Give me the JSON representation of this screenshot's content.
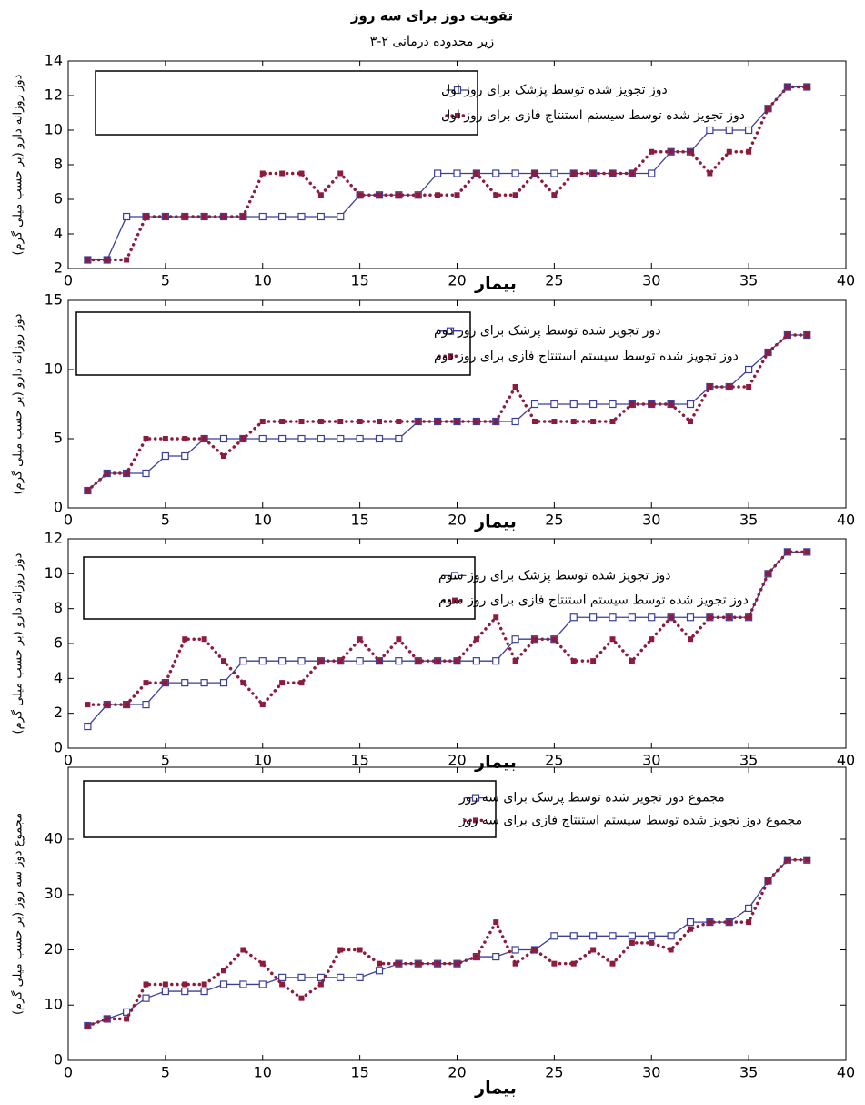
{
  "chart_data": [
    {
      "type": "line",
      "title": "تقویت دوز برای سه روز",
      "subtitle": "زیر محدوده درمانی ۲-۳",
      "x_label": "بیمار",
      "y_label": "دوز روزانه دارو (بر حسب میلی گرم)",
      "legend": "upper left",
      "xlim": [
        0,
        40
      ],
      "xticks": [
        0,
        5,
        10,
        15,
        20,
        25,
        30,
        35,
        40
      ],
      "ylim": [
        2,
        14
      ],
      "yticks": [
        2,
        4,
        6,
        8,
        10,
        12,
        14
      ],
      "x": [
        1,
        2,
        3,
        4,
        5,
        6,
        7,
        8,
        9,
        10,
        11,
        12,
        13,
        14,
        15,
        16,
        17,
        18,
        19,
        20,
        21,
        22,
        23,
        24,
        25,
        26,
        27,
        28,
        29,
        30,
        31,
        32,
        33,
        34,
        35,
        36,
        37,
        38
      ],
      "series": [
        {
          "name": "دوز تجویز شده توسط پزشک  برای روز اول",
          "color": "#3a3f9e",
          "style": "solid",
          "values": [
            2.5,
            2.5,
            5,
            5,
            5,
            5,
            5,
            5,
            5,
            5,
            5,
            5,
            5,
            5,
            6.25,
            6.25,
            6.25,
            6.25,
            7.5,
            7.5,
            7.5,
            7.5,
            7.5,
            7.5,
            7.5,
            7.5,
            7.5,
            7.5,
            7.5,
            7.5,
            8.75,
            8.75,
            10,
            10,
            10,
            11.25,
            12.5,
            12.5
          ]
        },
        {
          "name": "دوز تجویز شده توسط سیستم استنتاج فازی برای روز اول",
          "color": "#8e1b3c",
          "style": "dotted",
          "values": [
            2.5,
            2.5,
            2.5,
            5,
            5,
            5,
            5,
            5,
            5,
            7.5,
            7.5,
            7.5,
            6.25,
            7.5,
            6.25,
            6.25,
            6.25,
            6.25,
            6.25,
            6.25,
            7.5,
            6.25,
            6.25,
            7.5,
            6.25,
            7.5,
            7.5,
            7.5,
            7.5,
            8.75,
            8.75,
            8.75,
            7.5,
            8.75,
            8.75,
            11.25,
            12.5,
            12.5
          ]
        }
      ]
    },
    {
      "type": "line",
      "x_label": "بیمار",
      "y_label": "دوز روزانه دارو (بر حسب میلی گرم)",
      "legend": "upper left",
      "xlim": [
        0,
        40
      ],
      "xticks": [
        0,
        5,
        10,
        15,
        20,
        25,
        30,
        35,
        40
      ],
      "ylim": [
        0,
        15
      ],
      "yticks": [
        0,
        5,
        10,
        15
      ],
      "x": [
        1,
        2,
        3,
        4,
        5,
        6,
        7,
        8,
        9,
        10,
        11,
        12,
        13,
        14,
        15,
        16,
        17,
        18,
        19,
        20,
        21,
        22,
        23,
        24,
        25,
        26,
        27,
        28,
        29,
        30,
        31,
        32,
        33,
        34,
        35,
        36,
        37,
        38
      ],
      "series": [
        {
          "name": "دوز تجویز شده توسط پزشک  برای روز دوم",
          "color": "#3a3f9e",
          "style": "solid",
          "values": [
            1.25,
            2.5,
            2.5,
            2.5,
            3.75,
            3.75,
            5,
            5,
            5,
            5,
            5,
            5,
            5,
            5,
            5,
            5,
            5,
            6.25,
            6.25,
            6.25,
            6.25,
            6.25,
            6.25,
            7.5,
            7.5,
            7.5,
            7.5,
            7.5,
            7.5,
            7.5,
            7.5,
            7.5,
            8.75,
            8.75,
            10,
            11.25,
            12.5,
            12.5
          ]
        },
        {
          "name": "دوز تجویز شده توسط سیستم استنتاج فازی برای روز دوم",
          "color": "#8e1b3c",
          "style": "dotted",
          "values": [
            1.25,
            2.5,
            2.5,
            5,
            5,
            5,
            5,
            3.75,
            5,
            6.25,
            6.25,
            6.25,
            6.25,
            6.25,
            6.25,
            6.25,
            6.25,
            6.25,
            6.25,
            6.25,
            6.25,
            6.25,
            8.75,
            6.25,
            6.25,
            6.25,
            6.25,
            6.25,
            7.5,
            7.5,
            7.5,
            6.25,
            8.75,
            8.75,
            8.75,
            11.25,
            12.5,
            12.5
          ]
        }
      ]
    },
    {
      "type": "line",
      "x_label": "بیمار",
      "y_label": "دوز روزانه دارو (بر حسب میلی گرم)",
      "legend": "upper left",
      "xlim": [
        0,
        40
      ],
      "xticks": [
        0,
        5,
        10,
        15,
        20,
        25,
        30,
        35,
        40
      ],
      "ylim": [
        0,
        12
      ],
      "yticks": [
        0,
        2,
        4,
        6,
        8,
        10,
        12
      ],
      "x": [
        1,
        2,
        3,
        4,
        5,
        6,
        7,
        8,
        9,
        10,
        11,
        12,
        13,
        14,
        15,
        16,
        17,
        18,
        19,
        20,
        21,
        22,
        23,
        24,
        25,
        26,
        27,
        28,
        29,
        30,
        31,
        32,
        33,
        34,
        35,
        36,
        37,
        38
      ],
      "series": [
        {
          "name": "دوز تجویز شده توسط پزشک  برای روز سوم",
          "color": "#3a3f9e",
          "style": "solid",
          "values": [
            1.25,
            2.5,
            2.5,
            2.5,
            3.75,
            3.75,
            3.75,
            3.75,
            5,
            5,
            5,
            5,
            5,
            5,
            5,
            5,
            5,
            5,
            5,
            5,
            5,
            5,
            6.25,
            6.25,
            6.25,
            7.5,
            7.5,
            7.5,
            7.5,
            7.5,
            7.5,
            7.5,
            7.5,
            7.5,
            7.5,
            10,
            11.25,
            11.25
          ]
        },
        {
          "name": "دوز تجویز شده توسط سیستم استنتاج فازی برای روز سوم",
          "color": "#8e1b3c",
          "style": "dotted",
          "values": [
            2.5,
            2.5,
            2.5,
            3.75,
            3.75,
            6.25,
            6.25,
            5,
            3.75,
            2.5,
            3.75,
            3.75,
            5,
            5,
            6.25,
            5,
            6.25,
            5,
            5,
            5,
            6.25,
            7.5,
            5,
            6.25,
            6.25,
            5,
            5,
            6.25,
            5,
            6.25,
            7.5,
            6.25,
            7.5,
            7.5,
            7.5,
            10,
            11.25,
            11.25
          ]
        }
      ]
    },
    {
      "type": "line",
      "x_label": "بیمار",
      "y_label": "مجموع دوز سه روز (بر حسب میلی گرم)",
      "legend": "upper left",
      "xlim": [
        0,
        40
      ],
      "xticks": [
        0,
        5,
        10,
        15,
        20,
        25,
        30,
        35,
        40
      ],
      "ylim": [
        0,
        53
      ],
      "yticks": [
        0,
        10,
        20,
        30,
        40
      ],
      "x": [
        1,
        2,
        3,
        4,
        5,
        6,
        7,
        8,
        9,
        10,
        11,
        12,
        13,
        14,
        15,
        16,
        17,
        18,
        19,
        20,
        21,
        22,
        23,
        24,
        25,
        26,
        27,
        28,
        29,
        30,
        31,
        32,
        33,
        34,
        35,
        36,
        37,
        38
      ],
      "series": [
        {
          "name": "مجموع دوز تجویز شده توسط پزشک برای سه روز",
          "color": "#3a3f9e",
          "style": "solid",
          "values": [
            6.25,
            7.5,
            8.75,
            11.25,
            12.5,
            12.5,
            12.5,
            13.75,
            13.75,
            13.75,
            15,
            15,
            15,
            15,
            15,
            16.25,
            17.5,
            17.5,
            17.5,
            17.5,
            18.75,
            18.75,
            20,
            20,
            22.5,
            22.5,
            22.5,
            22.5,
            22.5,
            22.5,
            22.5,
            25,
            25,
            25,
            27.5,
            32.5,
            36.25,
            36.25
          ]
        },
        {
          "name": "مجموع دوز تجویز شده توسط سیستم استنتاج فازی برای سه روز",
          "color": "#8e1b3c",
          "style": "dotted",
          "values": [
            6.25,
            7.5,
            7.5,
            13.75,
            13.75,
            13.75,
            13.75,
            16.25,
            20,
            17.5,
            13.75,
            11.25,
            13.75,
            20,
            20,
            17.5,
            17.5,
            17.5,
            17.5,
            17.5,
            18.75,
            25,
            17.5,
            20,
            17.5,
            17.5,
            20,
            17.5,
            21.25,
            21.25,
            20,
            23.75,
            25,
            25,
            25,
            32.5,
            36.25,
            36.25
          ]
        }
      ]
    }
  ]
}
